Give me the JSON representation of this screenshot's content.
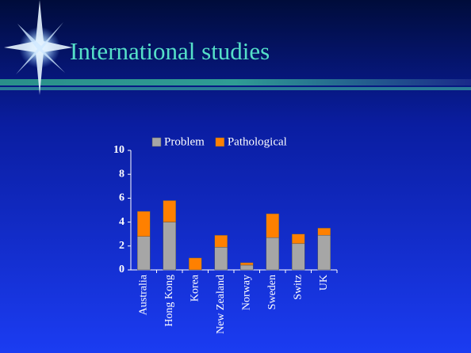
{
  "slide": {
    "title": "International studies"
  },
  "chart_data": {
    "type": "stacked-bar",
    "categories": [
      "Australia",
      "Hong Kong",
      "Korea",
      "New Zealand",
      "Norway",
      "Sweden",
      "Switz",
      "UK"
    ],
    "series": [
      {
        "name": "Problem",
        "color": "#a6a6a6",
        "values": [
          2.8,
          4.0,
          0,
          1.9,
          0.4,
          2.7,
          2.2,
          2.9
        ]
      },
      {
        "name": "Pathological",
        "color": "#ff8000",
        "values": [
          2.1,
          1.8,
          1.0,
          1.0,
          0.2,
          2.0,
          0.8,
          0.6
        ]
      }
    ],
    "ylim": [
      0,
      10
    ],
    "yticks": [
      0,
      2,
      4,
      6,
      8,
      10
    ],
    "legend": "top"
  }
}
